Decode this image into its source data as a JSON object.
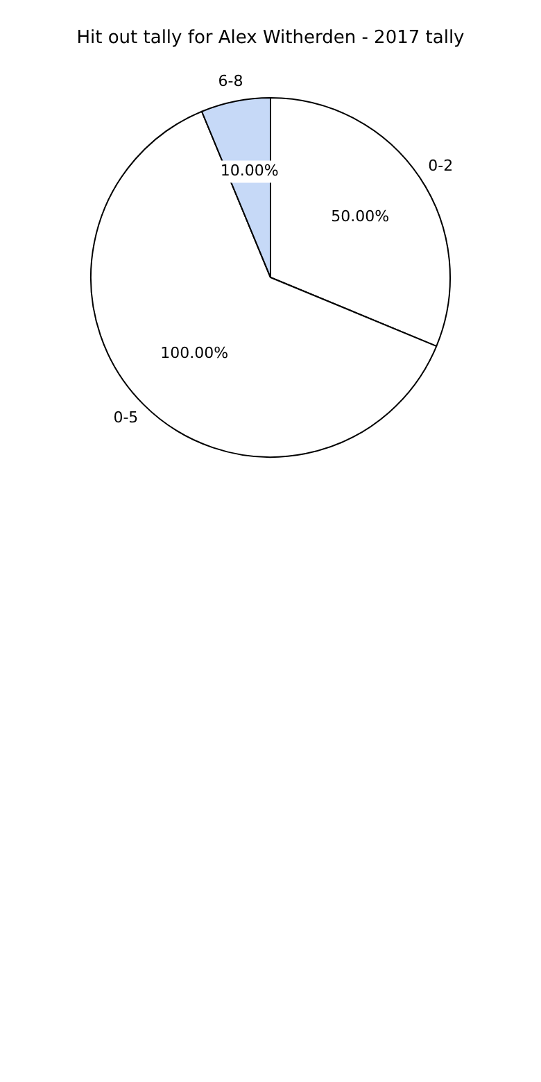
{
  "chart_data": {
    "type": "pie",
    "title": "Hit out tally for Alex Witherden - 2017 tally",
    "categories": [
      "0-2",
      "0-5",
      "6-8"
    ],
    "values": [
      50,
      100,
      10
    ],
    "value_labels": [
      "50.00%",
      "100.00%",
      "10.00%"
    ],
    "colors": [
      "#ffffff",
      "#ffffff",
      "#c6d9f7"
    ],
    "legend": false
  }
}
